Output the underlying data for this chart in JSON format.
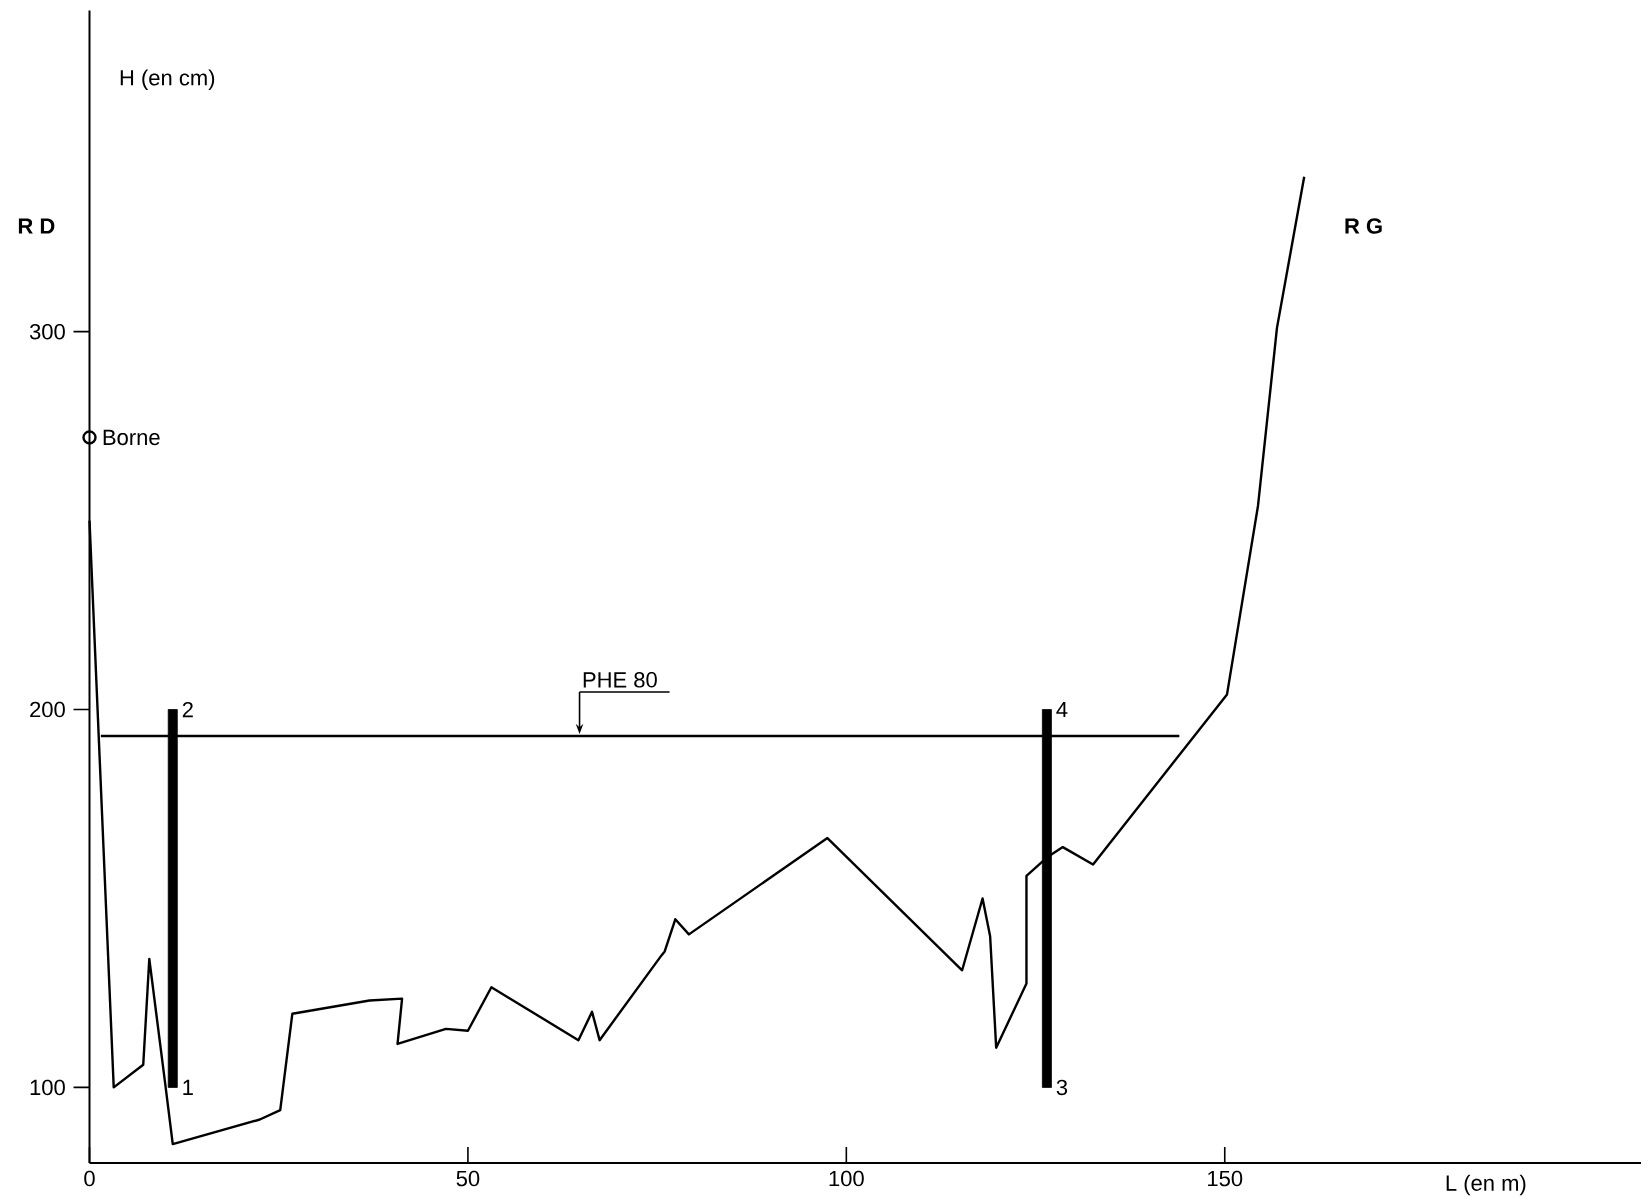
{
  "chart_data": {
    "type": "line",
    "xlabel": "L (en m)",
    "ylabel": "H (en cm)",
    "xlim": [
      0,
      205
    ],
    "ylim": [
      80,
      385
    ],
    "xticks": [
      0,
      50,
      100,
      150
    ],
    "yticks": [
      100,
      200,
      300
    ],
    "series": [
      {
        "color": "#000000",
        "x": [
          0,
          3.2,
          7.1,
          7.9,
          10,
          11,
          22.5,
          25.2,
          26.8,
          37,
          41.3,
          40.7,
          47.1,
          50,
          53.1,
          64.6,
          66.4,
          67.4,
          75.6,
          76,
          77.4,
          79.2,
          97.5,
          115.3,
          118,
          119,
          119.8,
          123.8,
          123.8,
          126.6,
          128.6,
          132.6,
          150.3,
          154.4,
          156.9,
          160.5
        ],
        "values": [
          250,
          100,
          106,
          134,
          101,
          85,
          91.5,
          94,
          119.5,
          123,
          123.5,
          111.5,
          115.5,
          115,
          126.5,
          112.5,
          120,
          112.5,
          135,
          136,
          144.5,
          140.5,
          166,
          131,
          150,
          140,
          110.5,
          127.5,
          156,
          161,
          163.6,
          159,
          204,
          254,
          301,
          341
        ]
      },
      {
        "type": "line",
        "name": "PHE 80",
        "color": "#000000",
        "x": [
          1.5,
          144
        ],
        "values": [
          193,
          193
        ]
      },
      {
        "type": "scatter",
        "name": "Borne",
        "color": "#000000",
        "marker": "circle",
        "x": [
          0
        ],
        "values": [
          272
        ]
      },
      {
        "type": "bar",
        "color": "#000000",
        "x": [
          11,
          126.5
        ],
        "base": [
          100,
          100
        ],
        "values": [
          100,
          100
        ]
      }
    ],
    "annotations": [
      "R D",
      "R G",
      "1",
      "2",
      "3",
      "4"
    ]
  }
}
